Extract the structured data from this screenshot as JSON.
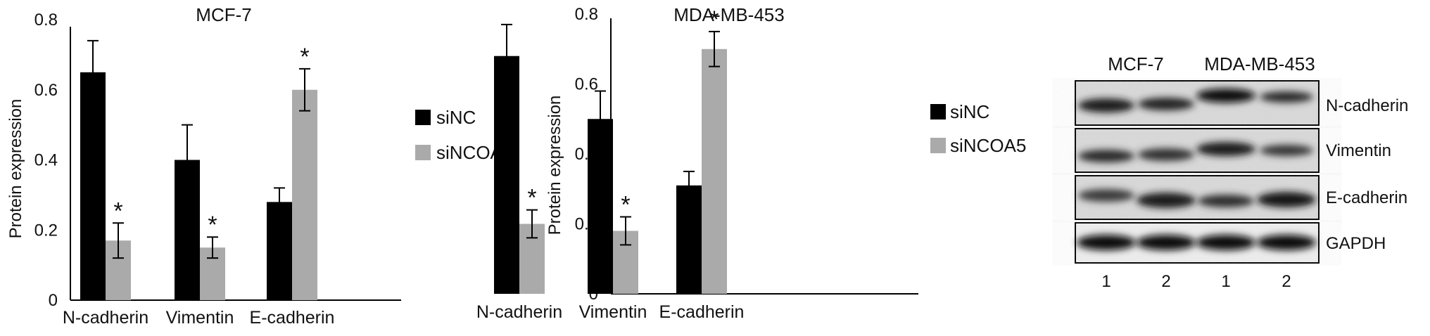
{
  "chart_data": [
    {
      "type": "bar",
      "title": "MCF-7",
      "xlabel": "",
      "ylabel": "Protein expression",
      "ylim": [
        0,
        0.8
      ],
      "yticks": [
        "0",
        "0.2",
        "0.4",
        "0.6",
        "0.8"
      ],
      "categories": [
        "N-cadherin",
        "Vimentin",
        "E-cadherin"
      ],
      "series": [
        {
          "name": "siNC",
          "color": "#000000",
          "values": [
            0.65,
            0.4,
            0.28
          ],
          "errors": [
            0.09,
            0.1,
            0.04
          ]
        },
        {
          "name": "siNCOA5",
          "color": "#aaaaaa",
          "values": [
            0.17,
            0.15,
            0.6
          ],
          "errors": [
            0.05,
            0.03,
            0.06
          ]
        }
      ],
      "significance": [
        {
          "series": 1,
          "category": 0,
          "mark": "*"
        },
        {
          "series": 1,
          "category": 1,
          "mark": "*"
        },
        {
          "series": 1,
          "category": 2,
          "mark": "*"
        }
      ],
      "legend": "right"
    },
    {
      "type": "bar",
      "title": "MDA-MB-453",
      "xlabel": "",
      "ylabel": "Protein expression",
      "ylim": [
        0,
        0.8
      ],
      "yticks": [
        "0",
        "0.2",
        "0.4",
        "0.6",
        "0.8"
      ],
      "categories": [
        "N-cadherin",
        "Vimentin",
        "E-cadherin"
      ],
      "series": [
        {
          "name": "siNC",
          "color": "#000000",
          "values": [
            0.68,
            0.5,
            0.31
          ],
          "errors": [
            0.09,
            0.08,
            0.04
          ]
        },
        {
          "name": "siNCOA5",
          "color": "#aaaaaa",
          "values": [
            0.2,
            0.18,
            0.7
          ],
          "errors": [
            0.04,
            0.04,
            0.05
          ]
        }
      ],
      "significance": [
        {
          "series": 1,
          "category": 0,
          "mark": "*"
        },
        {
          "series": 1,
          "category": 1,
          "mark": "*"
        },
        {
          "series": 1,
          "category": 2,
          "mark": "*"
        }
      ],
      "legend": "right"
    }
  ],
  "western_blot": {
    "groups": [
      "MCF-7",
      "MDA-MB-453"
    ],
    "lanes": [
      "1",
      "2",
      "1",
      "2"
    ],
    "rows": [
      "N-cadherin",
      "Vimentin",
      "E-cadherin",
      "GAPDH"
    ]
  }
}
